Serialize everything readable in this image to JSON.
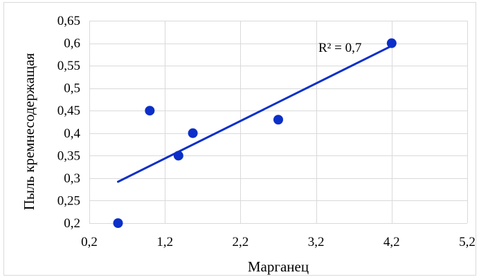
{
  "chart_data": {
    "type": "scatter",
    "xlabel": "Марганец",
    "ylabel": "Пыль кремнесодержащая",
    "xlim": [
      0.2,
      5.2
    ],
    "ylim": [
      0.2,
      0.65
    ],
    "x_ticks": [
      0.2,
      1.2,
      2.2,
      3.2,
      4.2,
      5.2
    ],
    "x_tick_labels": [
      "0,2",
      "1,2",
      "2,2",
      "3,2",
      "4,2",
      "5,2"
    ],
    "y_ticks": [
      0.2,
      0.25,
      0.3,
      0.35,
      0.4,
      0.45,
      0.5,
      0.55,
      0.6,
      0.65
    ],
    "y_tick_labels": [
      "0,2",
      "0,25",
      "0,3",
      "0,35",
      "0,4",
      "0,45",
      "0,5",
      "0,55",
      "0,6",
      "0,65"
    ],
    "grid": "vertical and horizontal",
    "series": [
      {
        "points": [
          {
            "x": 0.58,
            "y": 0.2
          },
          {
            "x": 1.0,
            "y": 0.45
          },
          {
            "x": 1.38,
            "y": 0.35
          },
          {
            "x": 1.57,
            "y": 0.4
          },
          {
            "x": 2.7,
            "y": 0.43
          },
          {
            "x": 4.2,
            "y": 0.6
          }
        ],
        "color": "#0b2fc8"
      }
    ],
    "trendline": {
      "type": "linear",
      "from": {
        "x": 0.58,
        "y": 0.292
      },
      "to": {
        "x": 4.2,
        "y": 0.594
      },
      "color": "#0b2fc8",
      "label": "R² = 0,7"
    }
  }
}
